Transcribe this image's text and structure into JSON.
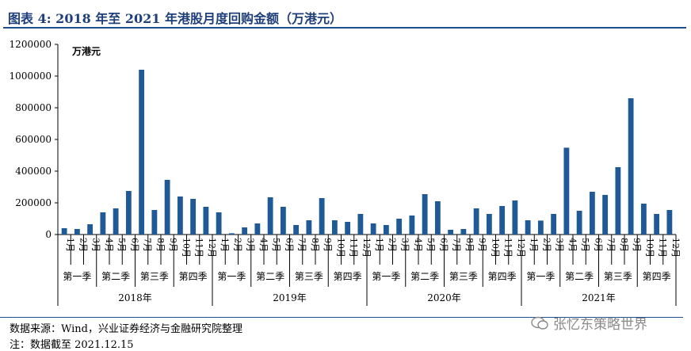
{
  "title": "图表 4:  2018 年至 2021 年港股月度回购金额（万港元）",
  "source": "数据来源：Wind，兴业证券经济与金融研究院整理",
  "note": "注：数据截至 2021.12.15",
  "watermark": "张忆东策略世界",
  "chart_data": {
    "type": "bar",
    "unit_label": "万港元",
    "ylim": [
      0,
      1200000
    ],
    "yticks": [
      0,
      200000,
      400000,
      600000,
      800000,
      1000000,
      1200000
    ],
    "bar_color": "#1f5a96",
    "years": [
      "2018年",
      "2019年",
      "2020年",
      "2021年"
    ],
    "quarters": [
      "第一季",
      "第二季",
      "第三季",
      "第四季"
    ],
    "months": [
      "1月",
      "2月",
      "3月",
      "4月",
      "5月",
      "6月",
      "7月",
      "8月",
      "9月",
      "10月",
      "11月",
      "12月"
    ],
    "values": [
      40000,
      35000,
      65000,
      140000,
      165000,
      275000,
      1040000,
      155000,
      345000,
      240000,
      225000,
      175000,
      140000,
      8000,
      45000,
      70000,
      235000,
      175000,
      60000,
      90000,
      230000,
      90000,
      80000,
      130000,
      70000,
      60000,
      100000,
      120000,
      255000,
      210000,
      30000,
      35000,
      165000,
      130000,
      180000,
      215000,
      90000,
      88000,
      130000,
      548000,
      150000,
      270000,
      250000,
      425000,
      860000,
      195000,
      130000,
      155000
    ]
  }
}
